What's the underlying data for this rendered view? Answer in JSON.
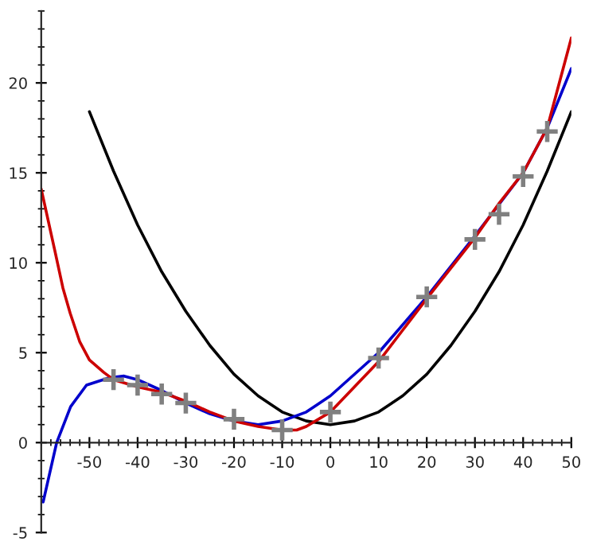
{
  "chart_data": {
    "type": "line",
    "xlim": [
      -60,
      50
    ],
    "ylim": [
      -5,
      24
    ],
    "xticks": [
      -50,
      -40,
      -30,
      -20,
      -10,
      0,
      10,
      20,
      30,
      40,
      50
    ],
    "yticks": [
      -5,
      0,
      5,
      10,
      15,
      20
    ],
    "grid": false,
    "legend": false,
    "series": [
      {
        "color": "#000000",
        "x": [
          -50,
          -45,
          -40,
          -35,
          -30,
          -25,
          -20,
          -15,
          -10,
          -5,
          0,
          5,
          10,
          15,
          20,
          25,
          30,
          35,
          40,
          45,
          50
        ],
        "values": [
          18.4,
          15.1,
          12.1,
          9.5,
          7.3,
          5.4,
          3.8,
          2.6,
          1.7,
          1.2,
          1.0,
          1.2,
          1.7,
          2.6,
          3.8,
          5.4,
          7.3,
          9.5,
          12.1,
          15.1,
          18.4
        ]
      },
      {
        "color": "#0000cc",
        "x": [
          -59.6,
          -56.8,
          -53.9,
          -50.6,
          -46,
          -42.8,
          -40,
          -35,
          -30,
          -25,
          -20,
          -15,
          -10,
          -5,
          0,
          10,
          20,
          30,
          40,
          45,
          50
        ],
        "values": [
          -3.3,
          0,
          2.0,
          3.2,
          3.6,
          3.7,
          3.5,
          2.9,
          2.2,
          1.6,
          1.2,
          1.0,
          1.2,
          1.7,
          2.6,
          5.0,
          8.1,
          11.5,
          15.0,
          17.5,
          20.8
        ]
      },
      {
        "color": "#cc0000",
        "x": [
          -60,
          -57.2,
          -55.5,
          -54,
          -52,
          -50,
          -47,
          -45,
          -40,
          -35,
          -30,
          -25,
          -20,
          -15,
          -10,
          -7,
          -5,
          0,
          10,
          20,
          30,
          35,
          40,
          45,
          50
        ],
        "values": [
          14.1,
          10.7,
          8.6,
          7.2,
          5.6,
          4.6,
          3.9,
          3.5,
          3.1,
          2.8,
          2.3,
          1.7,
          1.2,
          0.9,
          0.7,
          0.7,
          0.9,
          1.7,
          4.5,
          8.0,
          11.4,
          13.3,
          15.0,
          17.5,
          22.5
        ]
      },
      {
        "type": "scatter",
        "color": "#808080",
        "marker": "cross",
        "x": [
          -45,
          -40,
          -35,
          -30,
          -20,
          -10,
          0,
          10,
          20,
          30,
          35,
          40,
          45
        ],
        "values": [
          3.5,
          3.2,
          2.7,
          2.2,
          1.3,
          0.7,
          1.7,
          4.7,
          8.1,
          11.3,
          12.7,
          14.8,
          17.3
        ]
      }
    ]
  }
}
